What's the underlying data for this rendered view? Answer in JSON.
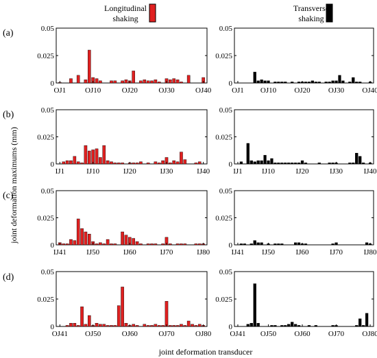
{
  "legend": {
    "longitudinal_line1": "Longitudinal",
    "longitudinal_line2": "shaking",
    "transverse_line1": "Transverse",
    "transverse_line2": "shaking"
  },
  "labels": {
    "ylabel": "joint deformation maximums (mm)",
    "xlabel": "joint deformation transducer"
  },
  "colors": {
    "longitudinal": "#e02020",
    "transverse": "#000000"
  },
  "chart_data": [
    {
      "type": "bar",
      "row": "(a)",
      "series": "Longitudinal shaking",
      "ylim": [
        0,
        0.05
      ],
      "yticks": [
        "0.05",
        "0.025",
        "0"
      ],
      "tick_labels": [
        {
          "label": "OJ1",
          "index": 1
        },
        {
          "label": "OJ10",
          "index": 10
        },
        {
          "label": "OJ20",
          "index": 20
        },
        {
          "label": "OJ30",
          "index": 30
        },
        {
          "label": "OJ40",
          "index": 40
        }
      ],
      "start_index": 1,
      "values": [
        0.0005,
        0,
        0,
        0.004,
        0,
        0.007,
        0,
        0.003,
        0.03,
        0.005,
        0.004,
        0.002,
        0,
        0,
        0.002,
        0.002,
        0,
        0.002,
        0.003,
        0.002,
        0.011,
        0,
        0.002,
        0.003,
        0.002,
        0.002,
        0.003,
        0.001,
        0,
        0.004,
        0.003,
        0.004,
        0.003,
        0.001,
        0,
        0.007,
        0,
        0,
        0,
        0.005
      ]
    },
    {
      "type": "bar",
      "row": "(a)",
      "series": "Transverse shaking",
      "ylim": [
        0,
        0.05
      ],
      "yticks": [
        "0.05",
        "0.025",
        "0"
      ],
      "tick_labels": [
        {
          "label": "OJ1",
          "index": 1
        },
        {
          "label": "OJ10",
          "index": 10
        },
        {
          "label": "OJ20",
          "index": 20
        },
        {
          "label": "OJ30",
          "index": 30
        },
        {
          "label": "OJ40",
          "index": 40
        }
      ],
      "start_index": 1,
      "values": [
        0,
        0,
        0,
        0,
        0,
        0.01,
        0.002,
        0.003,
        0.002,
        0.002,
        0,
        0.001,
        0.001,
        0.001,
        0.001,
        0,
        0.001,
        0,
        0.001,
        0.001,
        0.001,
        0.001,
        0.002,
        0.001,
        0.001,
        0,
        0.001,
        0.001,
        0.002,
        0.002,
        0.007,
        0.002,
        0,
        0.001,
        0.005,
        0.001,
        0.001,
        0,
        0,
        0.001
      ]
    },
    {
      "type": "bar",
      "row": "(b)",
      "series": "Longitudinal shaking",
      "ylim": [
        0,
        0.05
      ],
      "yticks": [
        "0.05",
        "0.025",
        "0"
      ],
      "tick_labels": [
        {
          "label": "IJ1",
          "index": 1
        },
        {
          "label": "IJ10",
          "index": 10
        },
        {
          "label": "IJ20",
          "index": 20
        },
        {
          "label": "IJ30",
          "index": 30
        },
        {
          "label": "IJ40",
          "index": 40
        }
      ],
      "start_index": 1,
      "values": [
        0,
        0.002,
        0.003,
        0.003,
        0.007,
        0.002,
        0.001,
        0.017,
        0.012,
        0.013,
        0.014,
        0.006,
        0.017,
        0.003,
        0.002,
        0.001,
        0.001,
        0.001,
        0,
        0.001,
        0.001,
        0.001,
        0.002,
        0,
        0.001,
        0,
        0.002,
        0.001,
        0.003,
        0.006,
        0.001,
        0.003,
        0.002,
        0.011,
        0.004,
        0,
        0,
        0.001,
        0.002,
        0
      ]
    },
    {
      "type": "bar",
      "row": "(b)",
      "series": "Transverse shaking",
      "ylim": [
        0,
        0.05
      ],
      "yticks": [
        "0.05",
        "0.025",
        "0"
      ],
      "tick_labels": [
        {
          "label": "IJ1",
          "index": 1
        },
        {
          "label": "IJ10",
          "index": 10
        },
        {
          "label": "IJ20",
          "index": 20
        },
        {
          "label": "IJ30",
          "index": 30
        },
        {
          "label": "IJ40",
          "index": 40
        }
      ],
      "start_index": 1,
      "values": [
        0,
        0.002,
        0,
        0.019,
        0.003,
        0.002,
        0.003,
        0.003,
        0.008,
        0.003,
        0.005,
        0.001,
        0.001,
        0.001,
        0.001,
        0.001,
        0.001,
        0.001,
        0.001,
        0.003,
        0.001,
        0,
        0,
        0,
        0.001,
        0,
        0,
        0.001,
        0.001,
        0.001,
        0,
        0,
        0,
        0.001,
        0.001,
        0.01,
        0.007,
        0.001,
        0,
        0.001
      ]
    },
    {
      "type": "bar",
      "row": "(c)",
      "series": "Longitudinal shaking",
      "ylim": [
        0,
        0.05
      ],
      "yticks": [
        "0.05",
        "0.025",
        "0"
      ],
      "tick_labels": [
        {
          "label": "IJ41",
          "index": 41
        },
        {
          "label": "IJ50",
          "index": 50
        },
        {
          "label": "IJ60",
          "index": 60
        },
        {
          "label": "IJ70",
          "index": 70
        },
        {
          "label": "IJ80",
          "index": 80
        }
      ],
      "start_index": 41,
      "values": [
        0.002,
        0.001,
        0.001,
        0.005,
        0.004,
        0.024,
        0.015,
        0.012,
        0.01,
        0.003,
        0.001,
        0.002,
        0.001,
        0.005,
        0.001,
        0.001,
        0,
        0.012,
        0.009,
        0.007,
        0.006,
        0.003,
        0.001,
        0,
        0.001,
        0.001,
        0.001,
        0,
        0.001,
        0.007,
        0.001,
        0,
        0.001,
        0.001,
        0.001,
        0,
        0,
        0.001,
        0.001,
        0.001
      ]
    },
    {
      "type": "bar",
      "row": "(c)",
      "series": "Transverse shaking",
      "ylim": [
        0,
        0.05
      ],
      "yticks": [
        "0.05",
        "0.025",
        "0"
      ],
      "tick_labels": [
        {
          "label": "IJ41",
          "index": 41
        },
        {
          "label": "IJ50",
          "index": 50
        },
        {
          "label": "IJ60",
          "index": 60
        },
        {
          "label": "IJ70",
          "index": 70
        },
        {
          "label": "IJ80",
          "index": 80
        }
      ],
      "start_index": 41,
      "values": [
        0,
        0.001,
        0.001,
        0,
        0.001,
        0.004,
        0.002,
        0.002,
        0,
        0.001,
        0,
        0.001,
        0.001,
        0.001,
        0,
        0,
        0,
        0.002,
        0.002,
        0.001,
        0.001,
        0,
        0,
        0,
        0,
        0,
        0,
        0,
        0.001,
        0.002,
        0,
        0,
        0,
        0,
        0,
        0,
        0,
        0,
        0.002,
        0.001
      ]
    },
    {
      "type": "bar",
      "row": "(d)",
      "series": "Longitudinal shaking",
      "ylim": [
        0,
        0.05
      ],
      "yticks": [
        "0.05",
        "0.025",
        "0"
      ],
      "tick_labels": [
        {
          "label": "OJ41",
          "index": 41
        },
        {
          "label": "OJ50",
          "index": 50
        },
        {
          "label": "OJ60",
          "index": 60
        },
        {
          "label": "OJ70",
          "index": 70
        },
        {
          "label": "OJ80",
          "index": 80
        }
      ],
      "start_index": 41,
      "values": [
        0,
        0,
        0.001,
        0.003,
        0.003,
        0.001,
        0.018,
        0.002,
        0.01,
        0.001,
        0.003,
        0.002,
        0.002,
        0.001,
        0.001,
        0.001,
        0.019,
        0.036,
        0.003,
        0.001,
        0.002,
        0.001,
        0,
        0.002,
        0.001,
        0.001,
        0.002,
        0.001,
        0.001,
        0.023,
        0.001,
        0.001,
        0.001,
        0.002,
        0.001,
        0.005,
        0.002,
        0.001,
        0.002,
        0.001
      ]
    },
    {
      "type": "bar",
      "row": "(d)",
      "series": "Transverse shaking",
      "ylim": [
        0,
        0.05
      ],
      "yticks": [
        "0.05",
        "0.025",
        "0"
      ],
      "tick_labels": [
        {
          "label": "OJ41",
          "index": 41
        },
        {
          "label": "OJ50",
          "index": 50
        },
        {
          "label": "OJ60",
          "index": 60
        },
        {
          "label": "OJ70",
          "index": 70
        },
        {
          "label": "OJ80",
          "index": 80
        }
      ],
      "start_index": 41,
      "values": [
        0,
        0,
        0,
        0.002,
        0.003,
        0.039,
        0.003,
        0,
        0,
        0,
        0.001,
        0.001,
        0,
        0.001,
        0.001,
        0.002,
        0.004,
        0.002,
        0.001,
        0,
        0,
        0.001,
        0,
        0.001,
        0,
        0,
        0,
        0,
        0.001,
        0.001,
        0,
        0,
        0,
        0,
        0,
        0.001,
        0.007,
        0.001,
        0.012,
        0
      ]
    }
  ]
}
